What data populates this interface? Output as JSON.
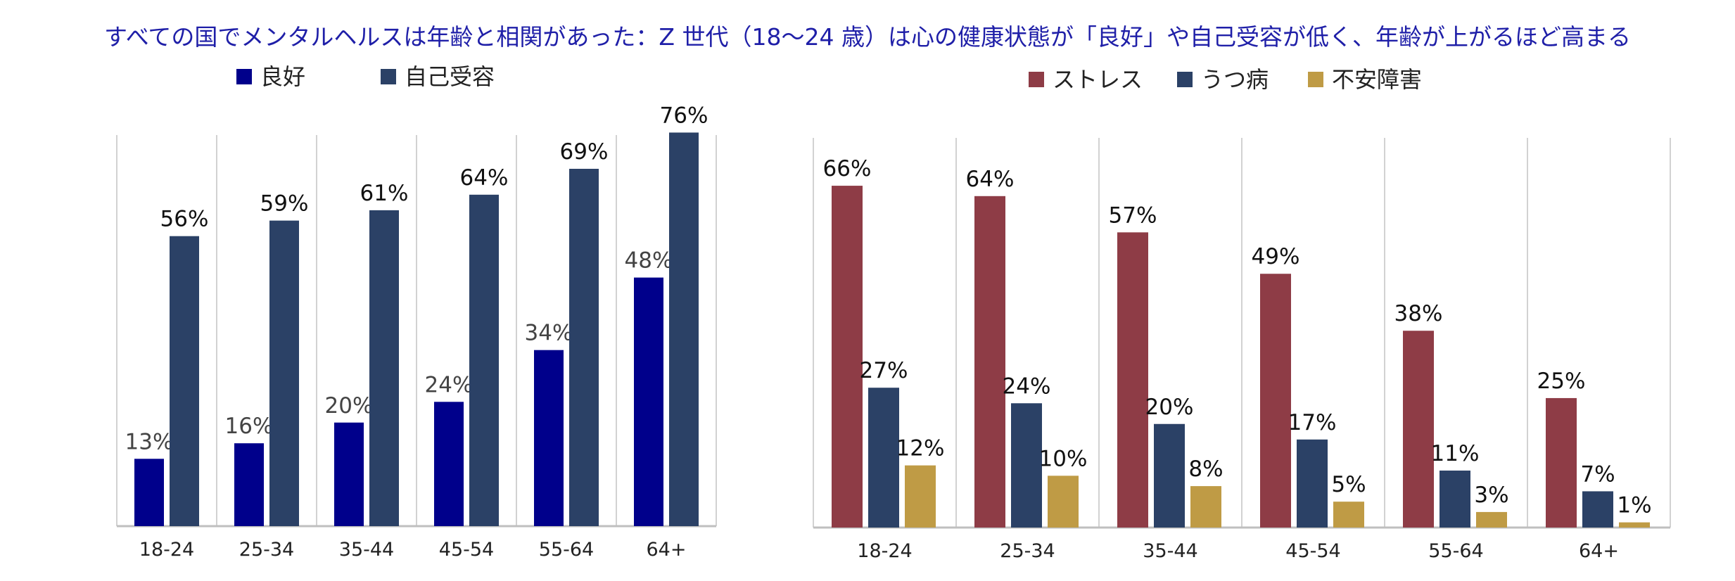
{
  "title": "すべての国でメンタルヘルスは年齢と相関があった：Z 世代（18〜24 歳）は心の健康状態が「良好」や自己受容が低く、年齢が上がるほど高まる",
  "colors": {
    "title": "#1f1fa8",
    "good": "#00008b",
    "self_acceptance": "#2b4166",
    "stress": "#8e3c46",
    "depression": "#2b4166",
    "anxiety": "#bf9b45",
    "grid": "#d2d2d2",
    "axis": "#bfbfbf",
    "label_dark": "#111111",
    "label_gray": "#444444"
  },
  "chart_data": [
    {
      "type": "bar",
      "categories": [
        "18-24",
        "25-34",
        "35-44",
        "45-54",
        "55-64",
        "64+"
      ],
      "series": [
        {
          "name": "良好",
          "values": [
            13,
            16,
            20,
            24,
            34,
            48
          ],
          "labels": [
            "13%",
            "16%",
            "20%",
            "24%",
            "34%",
            "48%"
          ]
        },
        {
          "name": "自己受容",
          "values": [
            56,
            59,
            61,
            64,
            69,
            76
          ],
          "labels": [
            "56%",
            "59%",
            "61%",
            "64%",
            "69%",
            "76%"
          ]
        }
      ],
      "ylim": [
        0,
        80
      ],
      "xlabel": "",
      "ylabel": "",
      "legend": "top-left",
      "grid": "vertical separators"
    },
    {
      "type": "bar",
      "categories": [
        "18-24",
        "25-34",
        "35-44",
        "45-54",
        "55-64",
        "64+"
      ],
      "series": [
        {
          "name": "ストレス",
          "values": [
            66,
            64,
            57,
            49,
            38,
            25
          ],
          "labels": [
            "66%",
            "64%",
            "57%",
            "49%",
            "38%",
            "25%"
          ]
        },
        {
          "name": "うつ病",
          "values": [
            27,
            24,
            20,
            17,
            11,
            7
          ],
          "labels": [
            "27%",
            "24%",
            "20%",
            "17%",
            "11%",
            "7%"
          ]
        },
        {
          "name": "不安障害",
          "values": [
            12,
            10,
            8,
            5,
            3,
            1
          ],
          "labels": [
            "12%",
            "10%",
            "8%",
            "5%",
            "3%",
            "1%"
          ]
        }
      ],
      "ylim": [
        0,
        80
      ],
      "xlabel": "",
      "ylabel": "",
      "legend": "top-center",
      "grid": "vertical separators"
    }
  ]
}
